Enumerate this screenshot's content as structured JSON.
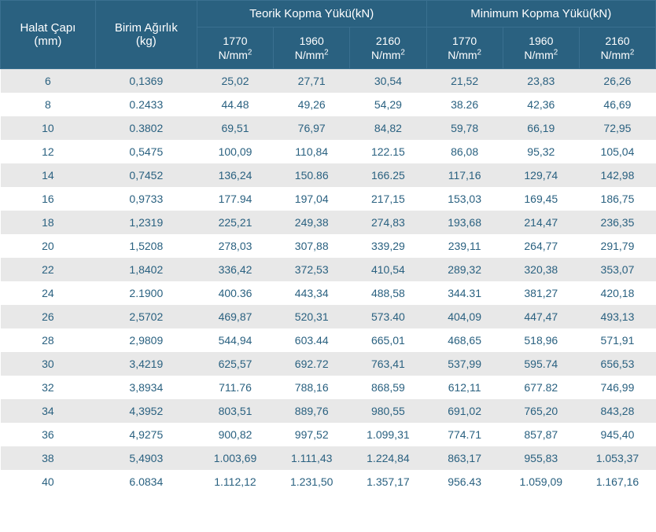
{
  "headers": {
    "halat_capi": "Halat Çapı",
    "halat_capi_unit": "(mm)",
    "birim_agirlik": "Birim Ağırlık",
    "birim_agirlik_unit": "(kg)",
    "teorik_kopma": "Teorik Kopma Yükü(kN)",
    "minimum_kopma": "Minimum Kopma Yükü(kN)",
    "s1770": "1770",
    "s1960": "1960",
    "s2160": "2160",
    "unit_nmm2": "N/mm"
  },
  "styles": {
    "header_bg": "#2a6180",
    "header_text": "#ffffff",
    "row_odd_bg": "#e8e8e8",
    "row_even_bg": "#ffffff",
    "cell_text": "#2a6180",
    "font_size": 14,
    "header_font_size": 15
  },
  "rows": [
    {
      "d": "6",
      "w": "0,1369",
      "t1": "25,02",
      "t2": "27,71",
      "t3": "30,54",
      "m1": "21,52",
      "m2": "23,83",
      "m3": "26,26"
    },
    {
      "d": "8",
      "w": "0.2433",
      "t1": "44.48",
      "t2": "49,26",
      "t3": "54,29",
      "m1": "38.26",
      "m2": "42,36",
      "m3": "46,69"
    },
    {
      "d": "10",
      "w": "0.3802",
      "t1": "69,51",
      "t2": "76,97",
      "t3": "84,82",
      "m1": "59,78",
      "m2": "66,19",
      "m3": "72,95"
    },
    {
      "d": "12",
      "w": "0,5475",
      "t1": "100,09",
      "t2": "110,84",
      "t3": "122.15",
      "m1": "86,08",
      "m2": "95,32",
      "m3": "105,04"
    },
    {
      "d": "14",
      "w": "0,7452",
      "t1": "136,24",
      "t2": "150.86",
      "t3": "166.25",
      "m1": "117,16",
      "m2": "129,74",
      "m3": "142,98"
    },
    {
      "d": "16",
      "w": "0,9733",
      "t1": "177.94",
      "t2": "197,04",
      "t3": "217,15",
      "m1": "153,03",
      "m2": "169,45",
      "m3": "186,75"
    },
    {
      "d": "18",
      "w": "1,2319",
      "t1": "225,21",
      "t2": "249,38",
      "t3": "274,83",
      "m1": "193,68",
      "m2": "214,47",
      "m3": "236,35"
    },
    {
      "d": "20",
      "w": "1,5208",
      "t1": "278,03",
      "t2": "307,88",
      "t3": "339,29",
      "m1": "239,11",
      "m2": "264,77",
      "m3": "291,79"
    },
    {
      "d": "22",
      "w": "1,8402",
      "t1": "336,42",
      "t2": "372,53",
      "t3": "410,54",
      "m1": "289,32",
      "m2": "320,38",
      "m3": "353,07"
    },
    {
      "d": "24",
      "w": "2.1900",
      "t1": "400.36",
      "t2": "443,34",
      "t3": "488,58",
      "m1": "344.31",
      "m2": "381,27",
      "m3": "420,18"
    },
    {
      "d": "26",
      "w": "2,5702",
      "t1": "469,87",
      "t2": "520,31",
      "t3": "573.40",
      "m1": "404,09",
      "m2": "447,47",
      "m3": "493,13"
    },
    {
      "d": "28",
      "w": "2,9809",
      "t1": "544,94",
      "t2": "603.44",
      "t3": "665,01",
      "m1": "468,65",
      "m2": "518,96",
      "m3": "571,91"
    },
    {
      "d": "30",
      "w": "3,4219",
      "t1": "625,57",
      "t2": "692.72",
      "t3": "763,41",
      "m1": "537,99",
      "m2": "595.74",
      "m3": "656,53"
    },
    {
      "d": "32",
      "w": "3,8934",
      "t1": "711.76",
      "t2": "788,16",
      "t3": "868,59",
      "m1": "612,11",
      "m2": "677.82",
      "m3": "746,99"
    },
    {
      "d": "34",
      "w": "4,3952",
      "t1": "803,51",
      "t2": "889,76",
      "t3": "980,55",
      "m1": "691,02",
      "m2": "765,20",
      "m3": "843,28"
    },
    {
      "d": "36",
      "w": "4,9275",
      "t1": "900,82",
      "t2": "997,52",
      "t3": "1.099,31",
      "m1": "774.71",
      "m2": "857,87",
      "m3": "945,40"
    },
    {
      "d": "38",
      "w": "5,4903",
      "t1": "1.003,69",
      "t2": "1.111,43",
      "t3": "1.224,84",
      "m1": "863,17",
      "m2": "955,83",
      "m3": "1.053,37"
    },
    {
      "d": "40",
      "w": "6.0834",
      "t1": "1.112,12",
      "t2": "1.231,50",
      "t3": "1.357,17",
      "m1": "956.43",
      "m2": "1.059,09",
      "m3": "1.167,16"
    }
  ]
}
